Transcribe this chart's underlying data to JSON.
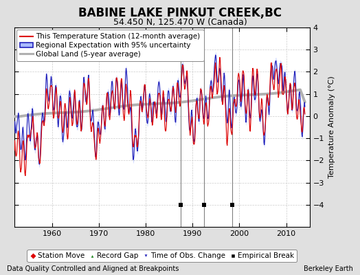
{
  "title": "BABINE LAKE PINKUT CREEK,BC",
  "subtitle": "54.450 N, 125.470 W (Canada)",
  "ylabel": "Temperature Anomaly (°C)",
  "xlabel_note": "Data Quality Controlled and Aligned at Breakpoints",
  "credit": "Berkeley Earth",
  "xlim": [
    1952,
    2015
  ],
  "ylim": [
    -5,
    4
  ],
  "yticks": [
    -4,
    -3,
    -2,
    -1,
    0,
    1,
    2,
    3,
    4
  ],
  "xticks": [
    1960,
    1970,
    1980,
    1990,
    2000,
    2010
  ],
  "bg_color": "#e0e0e0",
  "plot_bg_color": "#ffffff",
  "vertical_lines_color": "#808080",
  "vertical_lines": [
    1987.5,
    1992.5,
    1998.5
  ],
  "empirical_break_years": [
    1987.5,
    1992.5,
    1998.5
  ],
  "red_color": "#dd0000",
  "blue_color": "#2222bb",
  "blue_fill_color": "#aabbff",
  "gray_color": "#b0b0b0",
  "title_fontsize": 12,
  "subtitle_fontsize": 9,
  "legend_fontsize": 7.5,
  "tick_fontsize": 8,
  "note_fontsize": 7
}
